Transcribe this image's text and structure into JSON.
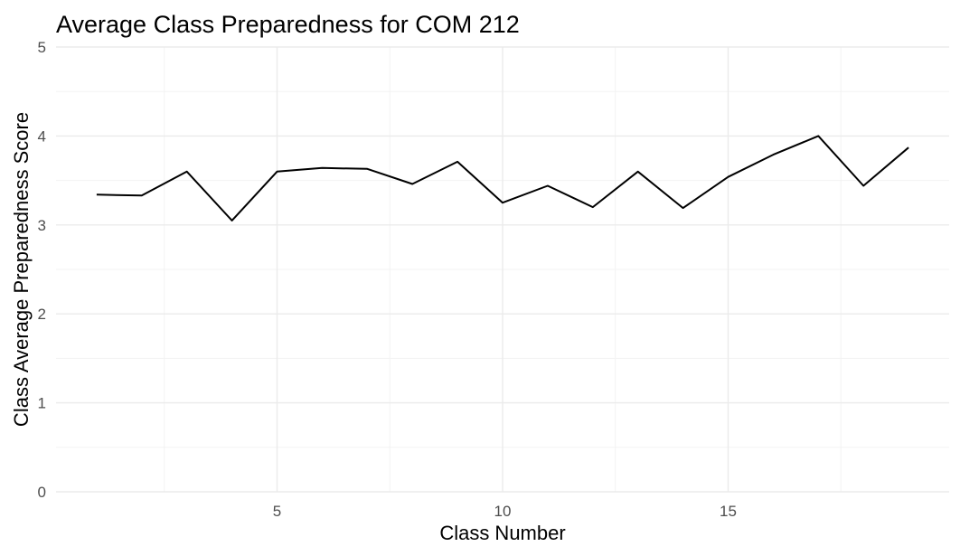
{
  "chart_data": {
    "type": "line",
    "title": "Average Class Preparedness for COM 212",
    "xlabel": "Class Number",
    "ylabel": "Class Average Preparedness Score",
    "xlim": [
      0.1,
      19.9
    ],
    "ylim": [
      0,
      5
    ],
    "x_ticks": [
      5,
      10,
      15
    ],
    "x_minor_ticks": [
      2.5,
      7.5,
      12.5,
      17.5
    ],
    "y_ticks": [
      0,
      1,
      2,
      3,
      4,
      5
    ],
    "y_minor_ticks": [
      0.5,
      1.5,
      2.5,
      3.5,
      4.5
    ],
    "grid": true,
    "legend": "none",
    "series": [
      {
        "color": "#000000",
        "x": [
          1,
          2,
          3,
          4,
          5,
          6,
          7,
          8,
          9,
          10,
          11,
          12,
          13,
          14,
          15,
          16,
          17,
          18,
          19
        ],
        "values": [
          3.34,
          3.33,
          3.6,
          3.05,
          3.6,
          3.64,
          3.63,
          3.46,
          3.71,
          3.25,
          3.44,
          3.2,
          3.6,
          3.19,
          3.54,
          3.79,
          4.0,
          3.44,
          3.87
        ]
      }
    ]
  }
}
